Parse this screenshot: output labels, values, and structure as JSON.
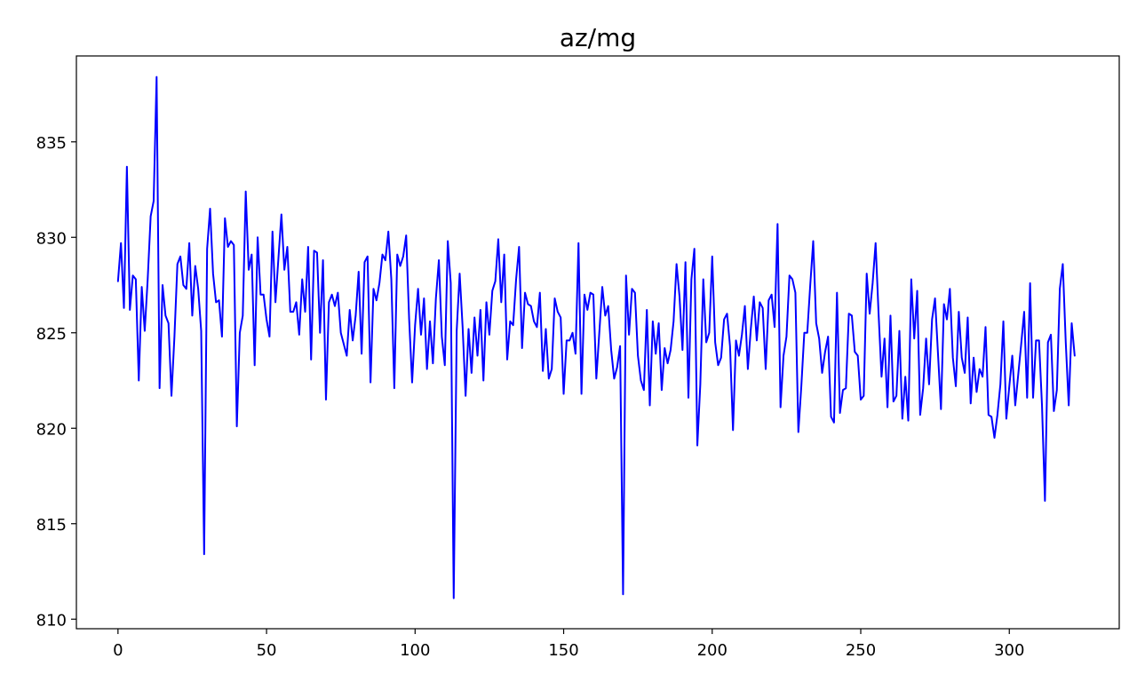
{
  "chart_data": {
    "type": "line",
    "title": "az/mg",
    "xlabel": "",
    "ylabel": "",
    "xlim": [
      -14,
      337
    ],
    "ylim": [
      809.5,
      839.5
    ],
    "xticks": [
      0,
      50,
      100,
      150,
      200,
      250,
      300
    ],
    "yticks": [
      810,
      815,
      820,
      825,
      830,
      835
    ],
    "grid": false,
    "legend": "none",
    "line_color": "#0000ff",
    "series": [
      {
        "values": [
          827.7,
          829.7,
          826.3,
          833.7,
          826.2,
          828.0,
          827.8,
          822.5,
          827.4,
          825.1,
          827.8,
          831.1,
          831.9,
          838.4,
          822.1,
          827.5,
          825.9,
          825.5,
          821.7,
          824.8,
          828.6,
          829.0,
          827.5,
          827.3,
          829.7,
          825.9,
          828.5,
          827.3,
          825.1,
          813.4,
          829.4,
          831.5,
          828.1,
          826.6,
          826.7,
          824.8,
          831.0,
          829.5,
          829.8,
          829.6,
          820.1,
          825.0,
          825.9,
          832.4,
          828.3,
          829.1,
          823.3,
          830.0,
          827.0,
          827.0,
          825.7,
          824.8,
          830.3,
          826.6,
          828.9,
          831.2,
          828.3,
          829.5,
          826.1,
          826.1,
          826.6,
          824.9,
          827.8,
          826.1,
          829.5,
          823.6,
          829.3,
          829.2,
          825.0,
          828.8,
          821.5,
          826.6,
          827.0,
          826.4,
          827.1,
          825.0,
          824.4,
          823.8,
          826.2,
          824.6,
          825.9,
          828.2,
          823.9,
          828.7,
          829.0,
          822.4,
          827.3,
          826.7,
          827.6,
          829.1,
          828.8,
          830.3,
          827.8,
          822.1,
          829.1,
          828.5,
          829.0,
          830.1,
          825.7,
          822.4,
          825.4,
          827.3,
          824.9,
          826.8,
          823.1,
          825.6,
          823.4,
          826.8,
          828.8,
          824.8,
          823.3,
          829.8,
          827.6,
          811.1,
          825.1,
          828.1,
          825.3,
          821.7,
          825.2,
          822.9,
          825.8,
          823.8,
          826.2,
          822.5,
          826.6,
          824.9,
          827.2,
          827.7,
          829.9,
          826.6,
          829.1,
          823.6,
          825.6,
          825.4,
          827.8,
          829.5,
          824.2,
          827.1,
          826.5,
          826.4,
          825.6,
          825.3,
          827.1,
          823.0,
          825.2,
          822.6,
          823.1,
          826.8,
          826.1,
          825.8,
          821.8,
          824.6,
          824.6,
          825.0,
          823.9,
          829.7,
          821.8,
          827.0,
          826.2,
          827.1,
          827.0,
          822.6,
          825.0,
          827.4,
          825.9,
          826.4,
          824.1,
          822.6,
          823.2,
          824.3,
          811.3,
          828.0,
          824.9,
          827.3,
          827.1,
          823.8,
          822.5,
          822.0,
          826.2,
          821.2,
          825.6,
          823.9,
          825.5,
          822.0,
          824.2,
          823.4,
          824.1,
          825.6,
          828.6,
          826.9,
          824.1,
          828.7,
          821.6,
          827.8,
          829.4,
          819.1,
          822.3,
          827.8,
          824.5,
          825.0,
          829.0,
          824.5,
          823.3,
          823.7,
          825.7,
          826.0,
          824.3,
          819.9,
          824.6,
          823.8,
          824.9,
          826.4,
          823.1,
          825.2,
          826.9,
          824.6,
          826.6,
          826.3,
          823.1,
          826.7,
          827.0,
          825.3,
          830.7,
          821.1,
          823.8,
          824.8,
          828.0,
          827.8,
          827.1,
          819.8,
          822.2,
          825.0,
          825.0,
          827.5,
          829.8,
          825.5,
          824.7,
          822.9,
          824.0,
          824.8,
          820.6,
          820.3,
          827.1,
          820.8,
          822.0,
          822.1,
          826.0,
          825.9,
          824.0,
          823.8,
          821.5,
          821.7,
          828.1,
          826.0,
          827.6,
          829.7,
          826.0,
          822.7,
          824.7,
          821.1,
          825.9,
          821.4,
          821.7,
          825.1,
          820.5,
          822.7,
          820.4,
          827.8,
          824.7,
          827.2,
          820.7,
          822.1,
          824.7,
          822.3,
          825.7,
          826.8,
          823.9,
          821.0,
          826.5,
          825.7,
          827.3,
          823.7,
          822.2,
          826.1,
          823.7,
          822.9,
          825.8,
          821.3,
          823.7,
          821.9,
          823.1,
          822.7,
          825.3,
          820.7,
          820.6,
          819.5,
          820.7,
          822.3,
          825.6,
          820.5,
          822.2,
          823.8,
          821.2,
          822.8,
          824.4,
          826.1,
          821.6,
          827.6,
          821.6,
          824.6,
          824.6,
          821.2,
          816.2,
          824.5,
          824.9,
          820.9,
          822.0,
          827.3,
          828.6,
          824.5,
          821.2,
          825.5,
          823.8
        ]
      }
    ]
  }
}
